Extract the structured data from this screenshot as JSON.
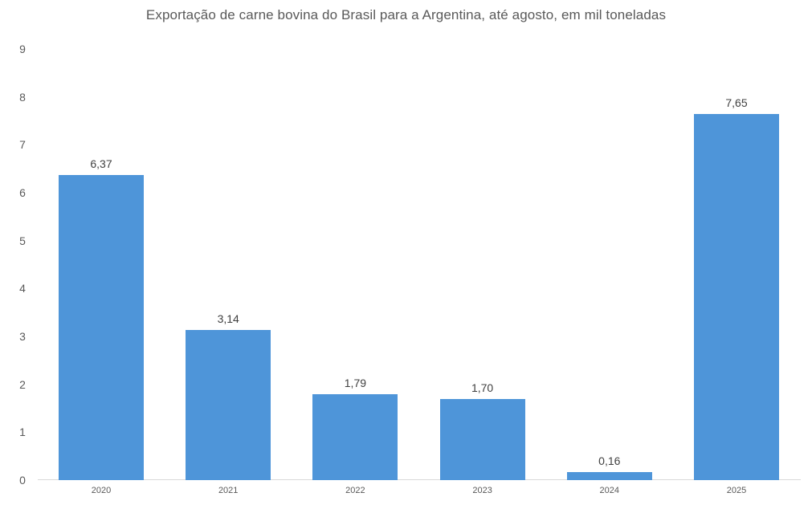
{
  "chart_data": {
    "type": "bar",
    "title": "Exportação de carne bovina do Brasil para a Argentina, até agosto, em mil toneladas",
    "xlabel": "",
    "ylabel": "",
    "categories": [
      "2020",
      "2021",
      "2022",
      "2023",
      "2024",
      "2025"
    ],
    "values": [
      6.37,
      3.14,
      1.79,
      1.7,
      0.16,
      7.65
    ],
    "value_labels": [
      "6,37",
      "3,14",
      "1,79",
      "1,70",
      "0,16",
      "7,65"
    ],
    "ylim": [
      0,
      9
    ],
    "yticks": [
      "0",
      "1",
      "2",
      "3",
      "4",
      "5",
      "6",
      "7",
      "8",
      "9"
    ],
    "grid": false,
    "legend": null,
    "bar_color": "#4e95d9"
  }
}
